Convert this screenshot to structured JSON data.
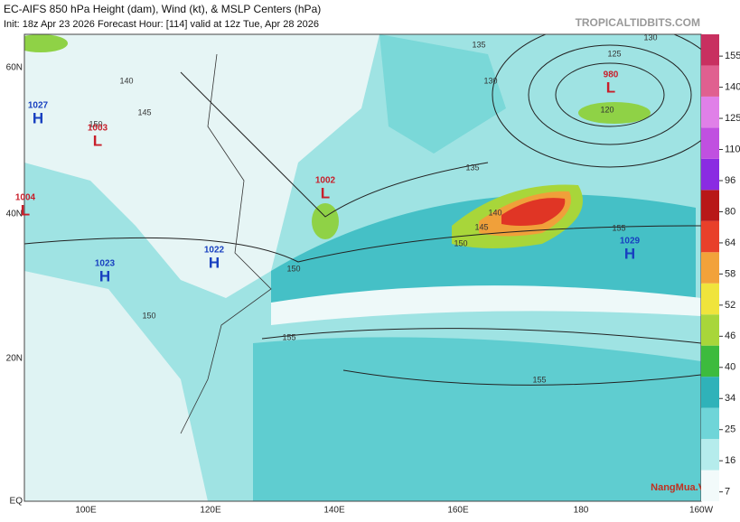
{
  "header": {
    "title": "EC-AIFS 850 hPa Height (dam), Wind (kt), & MSLP Centers (hPa)",
    "subtitle": "Init: 18z Apr 23 2026   Forecast Hour: [114]   valid at 12z Tue, Apr 28 2026",
    "site": "TROPICALTIDBITS.COM"
  },
  "watermark": "NangMua.VN",
  "latitude_labels": [
    "60N",
    "40N",
    "20N",
    "EQ"
  ],
  "longitude_labels": [
    "100E",
    "120E",
    "140E",
    "160E",
    "180",
    "160W"
  ],
  "pressure_centers": [
    {
      "kind": "H",
      "value": 1027
    },
    {
      "kind": "L",
      "value": 1003
    },
    {
      "kind": "L",
      "value": 1004
    },
    {
      "kind": "H",
      "value": 1023
    },
    {
      "kind": "H",
      "value": 1022
    },
    {
      "kind": "L",
      "value": 1002
    },
    {
      "kind": "L",
      "value": 980
    },
    {
      "kind": "H",
      "value": 1029
    }
  ],
  "contour_labels": [
    130,
    135,
    125,
    120,
    130,
    140,
    145,
    150,
    135,
    140,
    145,
    150,
    155,
    150,
    155,
    155,
    150
  ],
  "colorbar": {
    "ticks": [
      7,
      16,
      25,
      34,
      40,
      46,
      52,
      58,
      64,
      80,
      96,
      110,
      125,
      140,
      155
    ],
    "colors": [
      "#f2fafa",
      "#b5ecec",
      "#6fd5d8",
      "#2fb2b9",
      "#3dbb3d",
      "#a8d63a",
      "#f0e43c",
      "#f2a23a",
      "#e8402a",
      "#b81818",
      "#8a2be2",
      "#c050e0",
      "#e080e8",
      "#e06090",
      "#c83060"
    ]
  }
}
